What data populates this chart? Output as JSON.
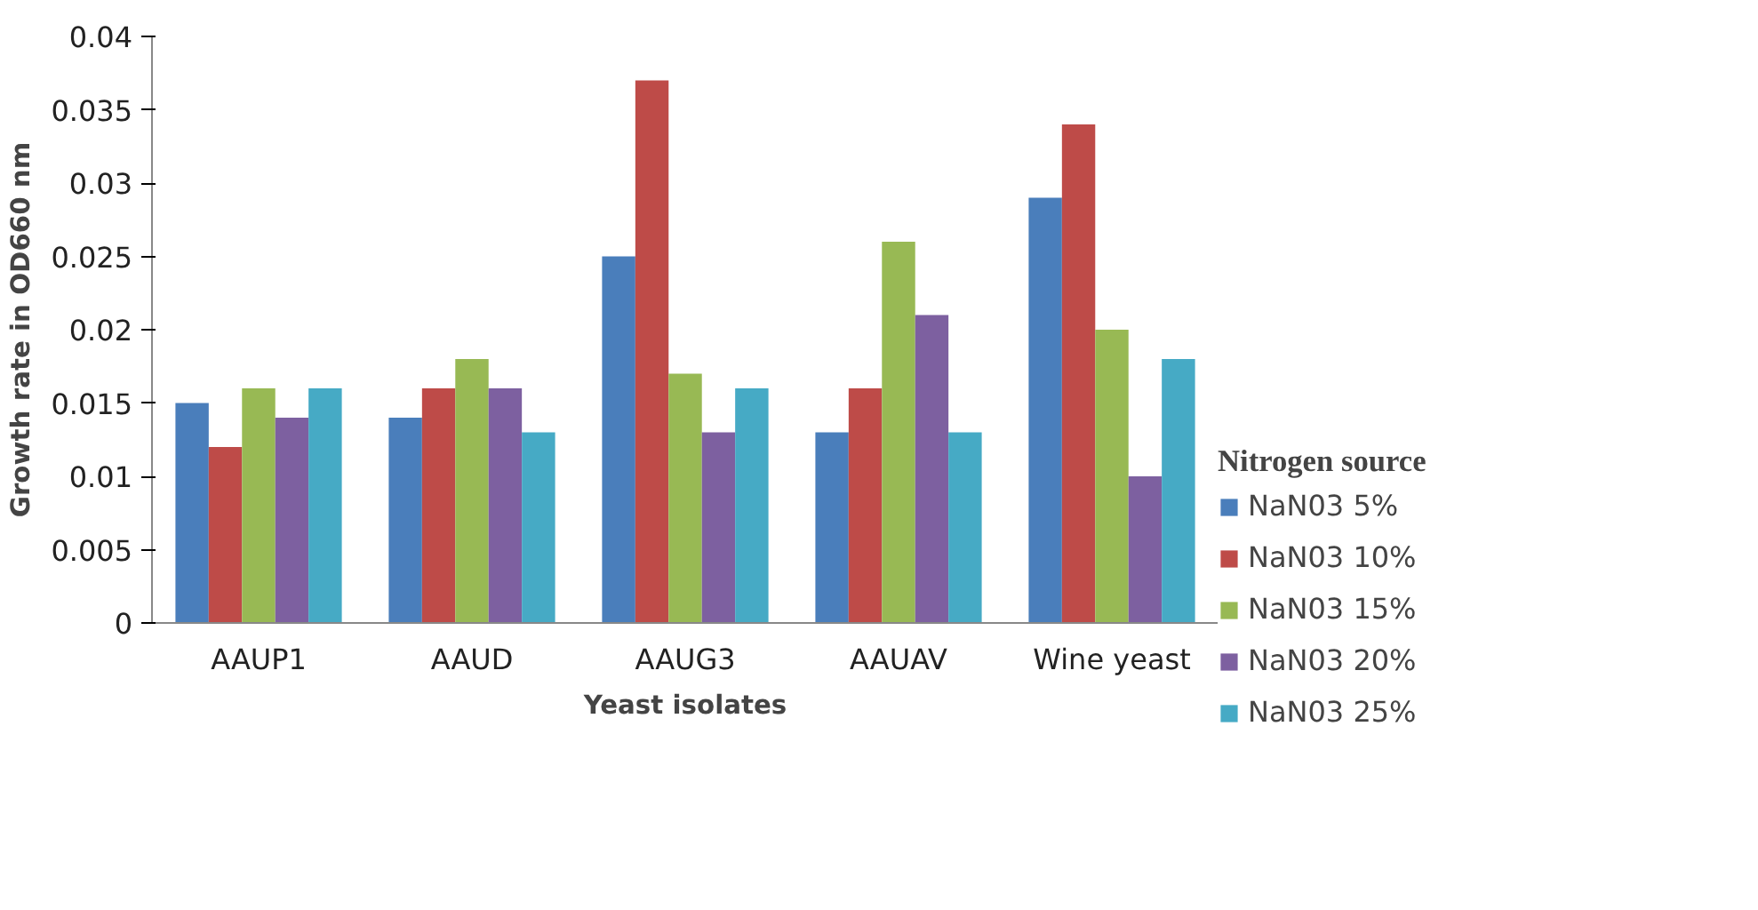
{
  "chart_data": {
    "type": "bar",
    "xlabel": "Yeast isolates",
    "ylabel": "Growth rate in OD660 nm",
    "legend_title": "Nitrogen source",
    "categories": [
      "AAUP1",
      "AAUD",
      "AAUG3",
      "AAUAV",
      "Wine yeast"
    ],
    "series": [
      {
        "name": "NaN03 5%",
        "color": "#4a7ebb",
        "values": [
          0.015,
          0.014,
          0.025,
          0.013,
          0.029
        ]
      },
      {
        "name": "NaN03 10%",
        "color": "#be4b48",
        "values": [
          0.012,
          0.016,
          0.037,
          0.016,
          0.034
        ]
      },
      {
        "name": "NaN03 15%",
        "color": "#98b954",
        "values": [
          0.016,
          0.018,
          0.017,
          0.026,
          0.02
        ]
      },
      {
        "name": "NaN03 20%",
        "color": "#7d60a0",
        "values": [
          0.014,
          0.016,
          0.013,
          0.021,
          0.01
        ]
      },
      {
        "name": "NaN03 25%",
        "color": "#46aac5",
        "values": [
          0.016,
          0.013,
          0.016,
          0.013,
          0.018
        ]
      }
    ],
    "ylim": [
      0,
      0.04
    ],
    "yticks": [
      0,
      0.005,
      0.01,
      0.015,
      0.02,
      0.025,
      0.03,
      0.035,
      0.04
    ],
    "grid": false,
    "legend": "right"
  }
}
